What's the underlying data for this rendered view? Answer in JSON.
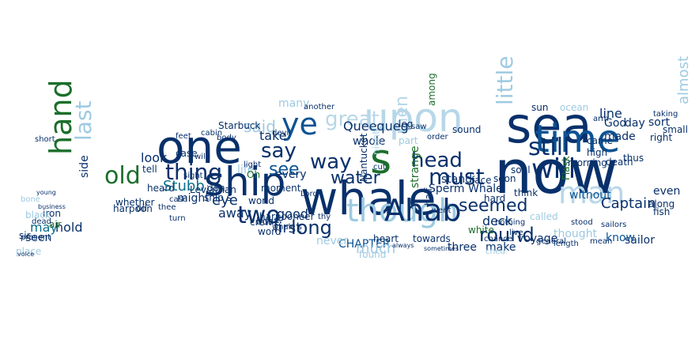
{
  "palette": [
    "#08306b",
    "#0b5394",
    "#1f77b4",
    "#0a6e8a",
    "#9ecae1",
    "#b7d7e8",
    "#1b6e2a",
    "#2e7d32",
    "#7fbcd9"
  ],
  "words": [
    "whale",
    "now",
    "sea",
    "one",
    "ship",
    "upon",
    "time",
    "ye",
    "s",
    "man",
    "though",
    "old",
    "thing",
    "hand",
    "will",
    "Ahab",
    "head",
    "still",
    "great",
    "last",
    "long",
    "two",
    "say",
    "way",
    "seemed",
    "little",
    "must",
    "water",
    "round",
    "see",
    "men",
    "Queequeg",
    "Captain",
    "said",
    "take",
    "first",
    "good",
    "eye",
    "away",
    "Stubb",
    "Sperm Whale",
    "look",
    "life",
    "seen",
    "may",
    "many",
    "day",
    "God",
    "line",
    "made",
    "sort",
    "right",
    "almost",
    "even",
    "along",
    "make",
    "CHAPTER",
    "much",
    "three",
    "deck",
    "fish",
    "sailor",
    "know",
    "thought",
    "white",
    "without",
    "might",
    "every",
    "world",
    "crew",
    "whole",
    "Starbuck",
    "harpoon",
    "side",
    "hold",
    "air",
    "tell",
    "heard",
    "think",
    "face",
    "stand",
    "part",
    "night",
    "never",
    "high",
    "came",
    "thus",
    "Flask",
    "soul",
    "soon",
    "small",
    "sir",
    "iron",
    "black",
    "place",
    "dead",
    "bone",
    "short",
    "turn",
    "case",
    "cabin",
    "body",
    "feet",
    "whether",
    "thee",
    "oil",
    "Leviathan",
    "strange",
    "half",
    "went",
    "heart",
    "towards",
    "Nantucket",
    "found",
    "order",
    "leg",
    "saw",
    "another",
    "word",
    "harpooneer",
    "moment",
    "boat",
    "sun",
    "ocean",
    "arm",
    "general",
    "length",
    "sailors",
    "voyage",
    "death",
    "morning",
    "taking",
    "mean",
    "chance",
    "live",
    "sound",
    "hard",
    "cried",
    "called",
    "nothing",
    "whale s",
    "ship s",
    "Oh",
    "Lord",
    "present",
    "voice",
    "sometimes",
    "always",
    "thy",
    "cut",
    "among",
    "stood",
    "light",
    "sight",
    "devil",
    "wild",
    "don t",
    "business",
    "young",
    "case"
  ]
}
